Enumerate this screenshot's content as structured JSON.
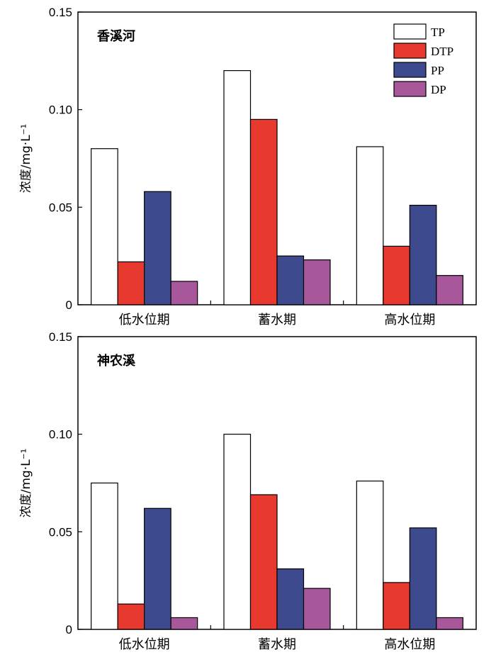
{
  "chart_data": [
    {
      "type": "bar",
      "title": "香溪河",
      "ylabel": "浓度/mg·L⁻¹",
      "categories": [
        "低水位期",
        "蓄水期",
        "高水位期"
      ],
      "ylim": [
        0,
        0.15
      ],
      "yticks": [
        0,
        0.05,
        0.1,
        0.15
      ],
      "ytick_labels": [
        "0",
        "0.05",
        "0.10",
        "0.15"
      ],
      "legend": "top-right",
      "series": [
        {
          "name": "TP",
          "color": "#ffffff",
          "values": [
            0.08,
            0.12,
            0.081
          ]
        },
        {
          "name": "DTP",
          "color": "#e8392e",
          "values": [
            0.022,
            0.095,
            0.03
          ]
        },
        {
          "name": "PP",
          "color": "#3e4a8e",
          "values": [
            0.058,
            0.025,
            0.051
          ]
        },
        {
          "name": "DP",
          "color": "#a7579a",
          "values": [
            0.012,
            0.023,
            0.015
          ]
        }
      ]
    },
    {
      "type": "bar",
      "title": "神农溪",
      "ylabel": "浓度/mg·L⁻¹",
      "categories": [
        "低水位期",
        "蓄水期",
        "高水位期"
      ],
      "ylim": [
        0,
        0.15
      ],
      "yticks": [
        0,
        0.05,
        0.1,
        0.15
      ],
      "ytick_labels": [
        "0",
        "0.05",
        "0.10",
        "0.15"
      ],
      "legend": "none",
      "series": [
        {
          "name": "TP",
          "color": "#ffffff",
          "values": [
            0.075,
            0.1,
            0.076
          ]
        },
        {
          "name": "DTP",
          "color": "#e8392e",
          "values": [
            0.013,
            0.069,
            0.024
          ]
        },
        {
          "name": "PP",
          "color": "#3e4a8e",
          "values": [
            0.062,
            0.031,
            0.052
          ]
        },
        {
          "name": "DP",
          "color": "#a7579a",
          "values": [
            0.006,
            0.021,
            0.006
          ]
        }
      ]
    }
  ]
}
